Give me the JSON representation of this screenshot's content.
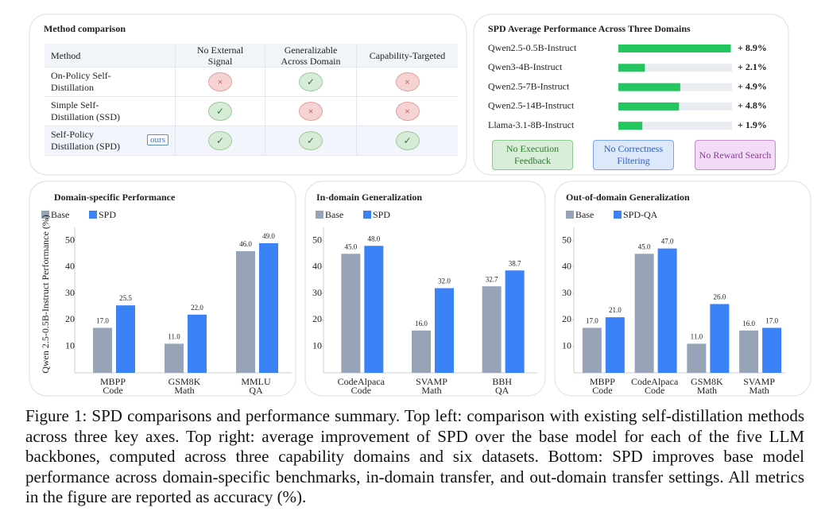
{
  "method_table": {
    "title": "Method comparison",
    "columns": [
      "Method",
      "No External Signal",
      "Generalizable Across Domain",
      "Capability-Targeted"
    ],
    "rows": [
      [
        "On-Policy Self-Distillation",
        "×",
        "✓",
        "×"
      ],
      [
        "Simple Self-Distillation (SSD)",
        "✓",
        "×",
        "×"
      ],
      [
        "Self-Policy Distillation (SPD)",
        "✓",
        "✓",
        "✓"
      ]
    ],
    "badge": "ours"
  },
  "tags": [
    "No Execution Feedback",
    "No Correctness Filtering",
    "No Reward Search"
  ],
  "chart_data": [
    {
      "type": "hbar",
      "title": "SPD Average Performance Across Three Domains",
      "categories": [
        "Qwen2.5-0.5B-Instruct",
        "Qwen3-4B-Instruct",
        "Qwen2.5-7B-Instruct",
        "Qwen2.5-14B-Instruct",
        "Llama-3.1-8B-Instruct"
      ],
      "values": [
        8.9,
        2.1,
        4.9,
        4.8,
        1.9
      ],
      "value_labels": [
        "+ 8.9%",
        "+ 2.1%",
        "+ 4.9%",
        "+ 4.8%",
        "+ 1.9%"
      ],
      "color": "#22c55e",
      "xlim": [
        0,
        9
      ]
    },
    {
      "type": "bar",
      "title": "Domain-specific Performance",
      "ylabel": "Qwen 2.5-0.5B-Instruct Performance (%)",
      "categories": [
        "MBPP",
        "GSM8K",
        "MMLU"
      ],
      "domains": [
        "Code",
        "Math",
        "QA"
      ],
      "series": [
        {
          "name": "Base",
          "color": "#97a3b6",
          "values": [
            17,
            11,
            46
          ],
          "value_labels": [
            "17.0",
            "11.0",
            "46.0"
          ]
        },
        {
          "name": "SPD",
          "color": "#3b82f6",
          "values": [
            25.5,
            22,
            49
          ],
          "value_labels": [
            "25.5",
            "22.0",
            "49.0"
          ]
        }
      ],
      "ylim": [
        0,
        55
      ],
      "yticks": [
        10,
        20,
        30,
        40,
        50
      ]
    },
    {
      "type": "bar",
      "title": "In-domain Generalization",
      "categories": [
        "CodeAlpaca",
        "SVAMP",
        "BBH"
      ],
      "domains": [
        "Code",
        "Math",
        "QA"
      ],
      "series": [
        {
          "name": "Base",
          "color": "#97a3b6",
          "values": [
            45,
            16,
            32.7
          ],
          "value_labels": [
            "45.0",
            "16.0",
            "32.7"
          ]
        },
        {
          "name": "SPD",
          "color": "#3b82f6",
          "values": [
            48,
            32,
            38.7
          ],
          "value_labels": [
            "48.0",
            "32.0",
            "38.7"
          ]
        }
      ],
      "ylim": [
        0,
        55
      ],
      "yticks": [
        10,
        20,
        30,
        40,
        50
      ]
    },
    {
      "type": "bar",
      "title": "Out-of-domain Generalization",
      "categories": [
        "MBPP",
        "CodeAlpaca",
        "GSM8K",
        "SVAMP"
      ],
      "domains": [
        "Code",
        "Code",
        "Math",
        "Math"
      ],
      "series": [
        {
          "name": "Base",
          "color": "#97a3b6",
          "values": [
            17,
            45,
            11,
            16
          ],
          "value_labels": [
            "17.0",
            "45.0",
            "11.0",
            "16.0"
          ]
        },
        {
          "name": "SPD-QA",
          "color": "#3b82f6",
          "values": [
            21,
            47,
            26,
            17
          ],
          "value_labels": [
            "21.0",
            "47.0",
            "26.0",
            "17.0"
          ]
        }
      ],
      "ylim": [
        0,
        55
      ],
      "yticks": [
        10,
        20,
        30,
        40,
        50
      ]
    }
  ],
  "caption": "Figure 1: SPD comparisons and performance summary. Top left: comparison with existing self-distillation methods across three key axes. Top right: average improvement of SPD over the base model for each of the five LLM backbones, computed across three capability domains and six datasets. Bottom: SPD improves base model performance across domain-specific benchmarks, in-domain transfer, and out-domain transfer settings. All metrics in the figure are reported as accuracy (%)."
}
